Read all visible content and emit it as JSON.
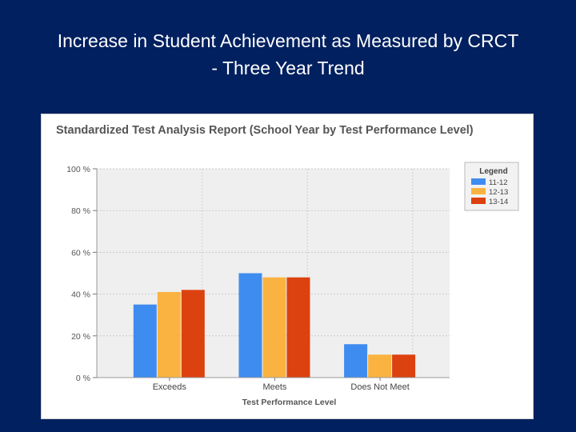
{
  "slide": {
    "title_line1": "Increase in Student Achievement as Measured by CRCT",
    "title_line2": "- Three Year Trend"
  },
  "colors": {
    "background": "#002060",
    "plot_bg": "#efefef",
    "series_1112": "#3f8cf0",
    "series_1213": "#fab340",
    "series_1314": "#dc4110"
  },
  "chart_data": {
    "type": "bar",
    "title": "Standardized Test Analysis Report (School Year by Test Performance Level)",
    "xlabel": "Test Performance Level",
    "ylabel": "",
    "categories": [
      "Exceeds",
      "Meets",
      "Does Not Meet"
    ],
    "series": [
      {
        "name": "11-12",
        "values": [
          35,
          50,
          16
        ]
      },
      {
        "name": "12-13",
        "values": [
          41,
          48,
          11
        ]
      },
      {
        "name": "13-14",
        "values": [
          42,
          48,
          11
        ]
      }
    ],
    "ylim": [
      0,
      100
    ],
    "yticks": [
      0,
      20,
      40,
      60,
      80,
      100
    ],
    "ytick_labels": [
      "0 %",
      "20 %",
      "40 %",
      "60 %",
      "80 %",
      "100 %"
    ],
    "legend_title": "Legend",
    "legend_position": "top-right",
    "grid": true
  }
}
